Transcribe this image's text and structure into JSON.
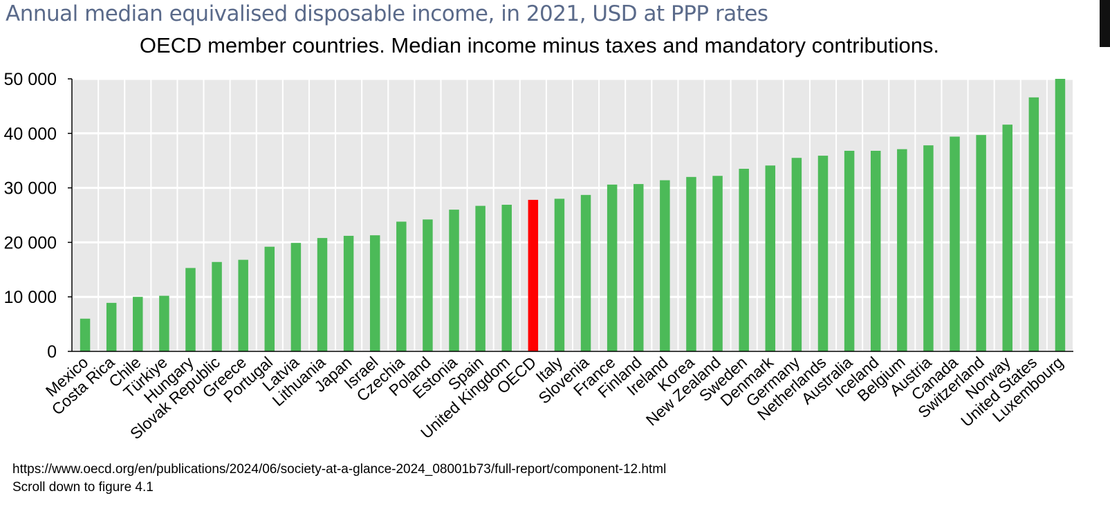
{
  "header": {
    "title": "Annual median equivalised disposable income, in 2021, USD at PPP rates",
    "subtitle": "OECD member countries. Median income minus taxes and mandatory contributions."
  },
  "chart_data": {
    "type": "bar",
    "categories": [
      "Mexico",
      "Costa Rica",
      "Chile",
      "Türkiye",
      "Hungary",
      "Slovak Republic",
      "Greece",
      "Portugal",
      "Latvia",
      "Lithuania",
      "Japan",
      "Israel",
      "Czechia",
      "Poland",
      "Estonia",
      "Spain",
      "United Kingdom",
      "OECD",
      "Italy",
      "Slovenia",
      "France",
      "Finland",
      "Ireland",
      "Korea",
      "New Zealand",
      "Sweden",
      "Denmark",
      "Germany",
      "Netherlands",
      "Australia",
      "Iceland",
      "Belgium",
      "Austria",
      "Canada",
      "Switzerland",
      "Norway",
      "United States",
      "Luxembourg"
    ],
    "values": [
      6000,
      8900,
      10000,
      10200,
      15300,
      16400,
      16800,
      19200,
      19900,
      20800,
      21200,
      21300,
      23800,
      24200,
      26000,
      26700,
      26900,
      27800,
      28000,
      28700,
      30600,
      30700,
      31400,
      32000,
      32200,
      33500,
      34100,
      35500,
      35900,
      36800,
      36800,
      37100,
      37800,
      39400,
      39700,
      41600,
      46600,
      50000
    ],
    "highlight": "OECD",
    "colors": {
      "bar": "#4cba58",
      "highlight": "#ff0000",
      "plot_background": "#e8e8e8",
      "gridline": "#ffffff"
    },
    "ylim": [
      0,
      50000
    ],
    "yticks": [
      0,
      10000,
      20000,
      30000,
      40000,
      50000
    ],
    "ytick_labels": [
      "0",
      "10 000",
      "20 000",
      "30 000",
      "40 000",
      "50 000"
    ],
    "grid": true,
    "legend": "none"
  },
  "source": {
    "url_text": "https://www.oecd.org/en/publications/2024/06/society-at-a-glance-2024_08001b73/full-report/component-12.html",
    "note": "Scroll down to figure 4.1"
  }
}
